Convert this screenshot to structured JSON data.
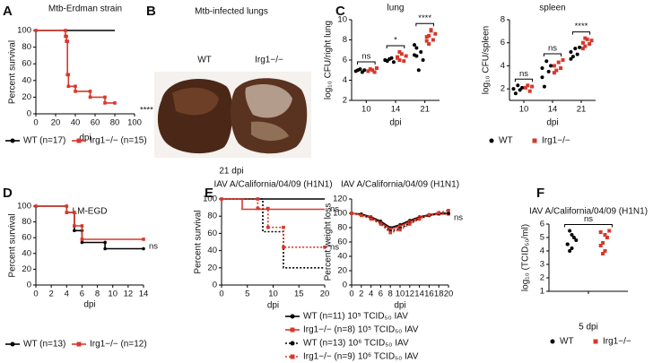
{
  "chart_data": [
    {
      "type": "line",
      "panel": "A",
      "title": "Mtb-Erdman strain",
      "ylabel": "Percent survival",
      "xlabel": "dpi",
      "xlim": [
        0,
        100
      ],
      "xticks": [
        0,
        20,
        40,
        60,
        80,
        100
      ],
      "ylim": [
        0,
        100
      ],
      "yticks": [
        0,
        20,
        40,
        60,
        80,
        100
      ],
      "annotations": [
        "****"
      ],
      "series": [
        {
          "name": "WT (n=17)",
          "color": "#000000",
          "x": [
            0,
            80
          ],
          "values": [
            100,
            100
          ]
        },
        {
          "name": "Irg1−/− (n=15)",
          "color": "#d7382c",
          "x": [
            0,
            30,
            30,
            31,
            31,
            32,
            32,
            33,
            33,
            40,
            40,
            55,
            55,
            70,
            70,
            80
          ],
          "values": [
            100,
            100,
            93,
            93,
            87,
            87,
            47,
            47,
            33,
            33,
            27,
            27,
            20,
            20,
            13,
            13
          ]
        }
      ]
    },
    {
      "type": "image",
      "panel": "B",
      "title": "Mtb-infected lungs",
      "labels": [
        "WT",
        "Irg1−/−"
      ],
      "caption": "21 dpi"
    },
    {
      "type": "strip",
      "panel": "C",
      "series": [
        {
          "name": "WT",
          "color": "#000000"
        },
        {
          "name": "Irg1−/−",
          "color": "#d7382c"
        }
      ],
      "subplots": [
        {
          "title": "lung",
          "ylabel": "log₁₀ CFU/right lung",
          "xlabel": "dpi",
          "categories": [
            "10",
            "14",
            "21"
          ],
          "ylim": [
            2,
            10
          ],
          "yticks": [
            2,
            4,
            6,
            8,
            10
          ],
          "annotations": [
            "ns",
            "*",
            "****"
          ],
          "series": [
            {
              "values": [
                [
                  4.9,
                  5.0,
                  5.1,
                  4.8,
                  5.0
                ],
                [
                  6.0,
                  5.9,
                  6.1,
                  6.2,
                  5.8,
                  6.0
                ],
                [
                  6.5,
                  7.2,
                  5.0,
                  6.8,
                  6.0,
                  7.5,
                  6.4
                ]
              ]
            },
            {
              "values": [
                [
                  4.9,
                  5.1,
                  5.0,
                  4.8,
                  5.2
                ],
                [
                  6.3,
                  6.0,
                  6.6,
                  5.9,
                  6.4,
                  6.2,
                  6.8
                ],
                [
                  8.3,
                  7.6,
                  8.9,
                  8.0,
                  8.6,
                  7.9,
                  8.4,
                  9.0
                ]
              ]
            }
          ]
        },
        {
          "title": "spleen",
          "ylabel": "log₁₀ CFU/spleen",
          "xlabel": "dpi",
          "categories": [
            "10",
            "14",
            "21"
          ],
          "ylim": [
            1,
            8
          ],
          "yticks": [
            2,
            4,
            6,
            8
          ],
          "annotations": [
            "ns",
            "ns",
            "****"
          ],
          "series": [
            {
              "values": [
                [
                  2.0,
                  1.6,
                  2.3,
                  1.9,
                  2.1
                ],
                [
                  3.8,
                  2.2,
                  4.4,
                  3.5,
                  4.0,
                  3.0
                ],
                [
                  5.2,
                  4.8,
                  5.5,
                  5.0,
                  5.6,
                  4.6
                ]
              ]
            },
            {
              "values": [
                [
                  2.1,
                  2.3,
                  1.8,
                  2.2
                ],
                [
                  4.0,
                  3.6,
                  4.3,
                  3.8,
                  4.5,
                  3.4
                ],
                [
                  6.0,
                  5.7,
                  6.3,
                  5.9,
                  6.2,
                  5.5,
                  6.4
                ]
              ]
            }
          ]
        }
      ]
    },
    {
      "type": "line",
      "panel": "D",
      "title": "LM-EGD",
      "ylabel": "Percent survival",
      "xlabel": "dpi",
      "xlim": [
        0,
        14
      ],
      "xticks": [
        0,
        2,
        4,
        6,
        8,
        10,
        12,
        14
      ],
      "ylim": [
        0,
        100
      ],
      "yticks": [
        0,
        20,
        40,
        60,
        80,
        100
      ],
      "annotations": [
        "ns"
      ],
      "series": [
        {
          "name": "WT (n=13)",
          "color": "#000000",
          "x": [
            0,
            4,
            4,
            5,
            5,
            6,
            6,
            9,
            9,
            14
          ],
          "values": [
            100,
            100,
            92,
            92,
            69,
            69,
            54,
            54,
            46,
            46
          ]
        },
        {
          "name": "Irg1−/− (n=12)",
          "color": "#d7382c",
          "x": [
            0,
            4,
            4,
            5,
            5,
            6,
            6,
            14
          ],
          "values": [
            100,
            100,
            92,
            92,
            75,
            75,
            58,
            58
          ]
        }
      ]
    },
    {
      "type": "line",
      "panel": "E",
      "series": [
        {
          "name": "WT (n=11) 10⁵ TCID₅₀ IAV",
          "color": "#000000",
          "dashed": false
        },
        {
          "name": "Irg1−/− (n=8) 10⁵ TCID₅₀ IAV",
          "color": "#d7382c",
          "dashed": false
        },
        {
          "name": "WT (n=13) 10⁶ TCID₅₀ IAV",
          "color": "#000000",
          "dashed": true
        },
        {
          "name": "Irg1−/− (n=9) 10⁶ TCID₅₀ IAV",
          "color": "#d7382c",
          "dashed": true
        }
      ],
      "subplots": [
        {
          "title": "IAV A/California/04/09 (H1N1)",
          "ylabel": "Percent survival",
          "xlabel": "dpi",
          "xlim": [
            0,
            20
          ],
          "xticks": [
            0,
            5,
            10,
            15,
            20
          ],
          "ylim": [
            0,
            100
          ],
          "yticks": [
            0,
            20,
            40,
            60,
            80,
            100
          ],
          "annotations": [
            "ns",
            "ns"
          ],
          "series": [
            {
              "x": [
                0,
                20
              ],
              "values": [
                100,
                100
              ]
            },
            {
              "x": [
                0,
                4,
                4,
                20
              ],
              "values": [
                100,
                100,
                88,
                88
              ]
            },
            {
              "x": [
                0,
                8,
                8,
                12,
                12,
                20
              ],
              "values": [
                100,
                100,
                62,
                62,
                20,
                20
              ]
            },
            {
              "x": [
                0,
                7,
                7,
                9,
                9,
                12,
                12,
                20
              ],
              "values": [
                100,
                100,
                89,
                89,
                67,
                67,
                44,
                44
              ]
            }
          ]
        },
        {
          "title": "IAV A/California/04/09 (H1N1)",
          "ylabel": "Percent weight loss",
          "xlabel": "dpi",
          "xlim": [
            0,
            20
          ],
          "xticks": [
            0,
            2,
            4,
            6,
            8,
            10,
            12,
            14,
            16,
            18,
            20
          ],
          "ylim": [
            0,
            120
          ],
          "yticks": [
            0,
            20,
            40,
            60,
            80,
            100,
            120
          ],
          "annotations": [
            "ns"
          ],
          "series": [
            {
              "x": [
                0,
                2,
                4,
                6,
                8,
                10,
                12,
                14,
                16,
                18,
                20
              ],
              "values": [
                100,
                99,
                95,
                89,
                80,
                84,
                90,
                95,
                98,
                100,
                100
              ]
            },
            {
              "x": [
                0,
                2,
                4,
                6,
                8,
                10,
                12,
                14,
                16,
                18,
                20
              ],
              "values": [
                100,
                98,
                94,
                87,
                78,
                82,
                88,
                94,
                97,
                99,
                99
              ]
            },
            {
              "x": [
                0,
                2,
                4,
                6,
                8,
                10,
                12,
                14,
                16,
                18,
                20
              ],
              "values": [
                100,
                98,
                93,
                86,
                75,
                79,
                86,
                93,
                97,
                100,
                100
              ]
            },
            {
              "x": [
                0,
                2,
                4,
                6,
                8,
                10,
                12,
                14,
                16,
                18,
                20
              ],
              "values": [
                100,
                97,
                92,
                85,
                73,
                77,
                85,
                92,
                98,
                101,
                104
              ]
            }
          ]
        }
      ]
    },
    {
      "type": "strip",
      "panel": "F",
      "title": "IAV A/California/04/09 (H1N1)",
      "ylabel": "log₁₀ (TCID₅₀/ml)",
      "xlabel": "5 dpi",
      "categories": [
        null
      ],
      "ylim": [
        1,
        6
      ],
      "yticks": [
        1,
        2,
        3,
        4,
        5,
        6
      ],
      "annotations": [
        "ns"
      ],
      "series": [
        {
          "name": "WT",
          "color": "#000000",
          "values": [
            [
              4.5,
              5.5,
              4.2,
              5.0,
              4.8,
              4.5,
              4.0,
              5.2
            ]
          ]
        },
        {
          "name": "Irg1−/−",
          "color": "#d7382c",
          "values": [
            [
              5.4,
              4.6,
              4.0,
              5.0,
              5.5,
              4.4,
              3.8,
              5.2
            ]
          ]
        }
      ]
    }
  ]
}
